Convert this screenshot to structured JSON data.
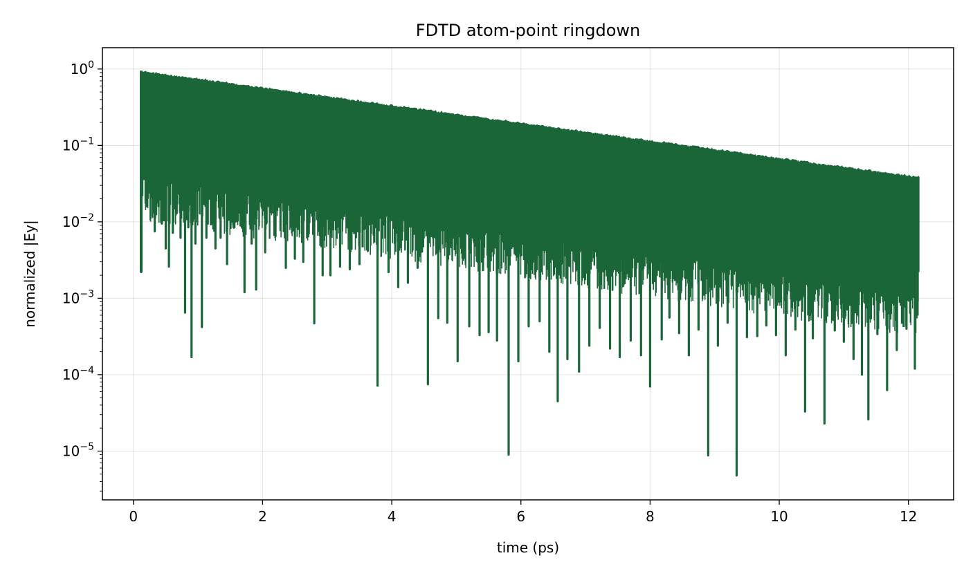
{
  "chart_data": {
    "type": "line",
    "title": "FDTD atom-point ringdown",
    "xlabel": "time (ps)",
    "ylabel": "normalized |Ey|",
    "xlim": [
      -0.48,
      12.7
    ],
    "ylim": [
      2.3e-06,
      1.9
    ],
    "yscale": "log",
    "grid": true,
    "legend": "none",
    "color": "#1a6638",
    "x_ticks": [
      {
        "value": 0,
        "label": "0"
      },
      {
        "value": 2,
        "label": "2"
      },
      {
        "value": 4,
        "label": "4"
      },
      {
        "value": 6,
        "label": "6"
      },
      {
        "value": 8,
        "label": "8"
      },
      {
        "value": 10,
        "label": "10"
      },
      {
        "value": 12,
        "label": "12"
      }
    ],
    "y_ticks": [
      {
        "value": 1,
        "base": "10",
        "exp": "0"
      },
      {
        "value": 0.1,
        "base": "10",
        "exp": "−1"
      },
      {
        "value": 0.01,
        "base": "10",
        "exp": "−2"
      },
      {
        "value": 0.001,
        "base": "10",
        "exp": "−3"
      },
      {
        "value": 0.0001,
        "base": "10",
        "exp": "−4"
      },
      {
        "value": 1e-05,
        "base": "10",
        "exp": "−5"
      }
    ],
    "envelope": {
      "x": [
        0.12,
        12.15
      ],
      "y": [
        0.95,
        0.039
      ]
    },
    "floor": {
      "x": [
        0.12,
        12.15
      ],
      "y": [
        0.04,
        0.0012
      ]
    },
    "dips": {
      "x": [
        0.12,
        0.2,
        0.27,
        0.33,
        0.39,
        0.44,
        0.5,
        0.55,
        0.61,
        0.67,
        0.73,
        0.8,
        0.85,
        0.9,
        0.96,
        1.06,
        1.13,
        1.2,
        1.27,
        1.35,
        1.45,
        1.55,
        1.72,
        1.83,
        1.9,
        2.04,
        2.2,
        2.36,
        2.5,
        2.63,
        2.8,
        2.93,
        3.05,
        3.2,
        3.35,
        3.5,
        3.63,
        3.78,
        3.95,
        4.1,
        4.25,
        4.4,
        4.56,
        4.72,
        4.86,
        5.02,
        5.2,
        5.36,
        5.5,
        5.63,
        5.81,
        5.96,
        6.12,
        6.29,
        6.44,
        6.57,
        6.72,
        6.9,
        7.06,
        7.22,
        7.38,
        7.53,
        7.7,
        7.86,
        8.0,
        8.18,
        8.3,
        8.45,
        8.6,
        8.75,
        8.9,
        9.05,
        9.2,
        9.34,
        9.5,
        9.66,
        9.8,
        9.95,
        10.1,
        10.25,
        10.4,
        10.52,
        10.7,
        10.86,
        11.0,
        11.15,
        11.28,
        11.38,
        11.52,
        11.67,
        11.82,
        11.97,
        12.1
      ],
      "y": [
        0.0022,
        0.016,
        0.012,
        0.0075,
        0.016,
        0.0095,
        0.0045,
        0.0026,
        0.0072,
        0.013,
        0.0062,
        0.00065,
        0.0085,
        0.00017,
        0.0052,
        0.00042,
        0.0062,
        0.0093,
        0.0045,
        0.0062,
        0.0028,
        0.0085,
        0.0012,
        0.0052,
        0.0013,
        0.004,
        0.0065,
        0.0025,
        0.0033,
        0.003,
        0.00047,
        0.002,
        0.002,
        0.0026,
        0.0024,
        0.0028,
        0.0042,
        7.2e-05,
        0.0022,
        0.0014,
        0.0016,
        0.0025,
        7.5e-05,
        0.00055,
        0.00048,
        0.00015,
        0.00043,
        0.00033,
        0.00036,
        0.00028,
        9e-06,
        0.00015,
        0.00043,
        0.0005,
        0.0002,
        4.5e-05,
        0.00016,
        0.00011,
        0.00024,
        0.00041,
        0.00022,
        0.00017,
        0.00028,
        0.00018,
        7e-05,
        0.00029,
        0.00056,
        0.00035,
        0.00018,
        0.00039,
        8.8e-06,
        0.00024,
        0.00048,
        4.8e-06,
        0.00031,
        0.00032,
        0.00044,
        0.00033,
        0.00018,
        0.00039,
        3.3e-05,
        0.0003,
        2.3e-05,
        0.00038,
        0.00027,
        0.00016,
        0.0001,
        2.6e-05,
        0.00034,
        6.3e-05,
        0.00021,
        0.0004,
        0.00012
      ]
    }
  }
}
